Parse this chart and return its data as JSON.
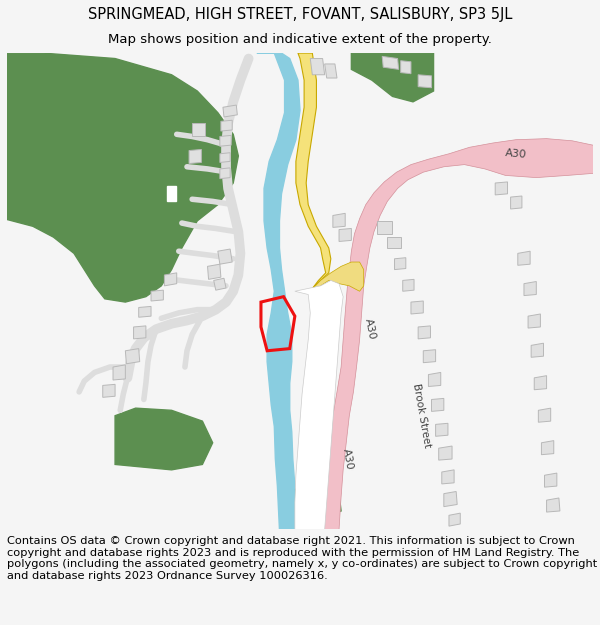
{
  "title_line1": "SPRINGMEAD, HIGH STREET, FOVANT, SALISBURY, SP3 5JL",
  "title_line2": "Map shows position and indicative extent of the property.",
  "footer_text": "Contains OS data © Crown copyright and database right 2021. This information is subject to Crown copyright and database rights 2023 and is reproduced with the permission of HM Land Registry. The polygons (including the associated geometry, namely x, y co-ordinates) are subject to Crown copyright and database rights 2023 Ordnance Survey 100026316.",
  "bg_color": "#f5f5f5",
  "map_bg": "#ffffff",
  "green_color": "#5c8f50",
  "blue_color": "#89cde0",
  "yellow_road_color": "#f5e27a",
  "yellow_road_outline": "#c8a800",
  "pink_road_color": "#f2bfc8",
  "pink_road_outline": "#d4909a",
  "building_color": "#e0e0e0",
  "building_edge": "#b8b8b8",
  "road_fill": "#ffffff",
  "road_edge": "#cccccc",
  "red_polygon_color": "#ee1111",
  "road_label_color": "#444444",
  "title_fontsize": 10.5,
  "subtitle_fontsize": 9.5,
  "footer_fontsize": 8.2,
  "map_border_color": "#aaaaaa"
}
